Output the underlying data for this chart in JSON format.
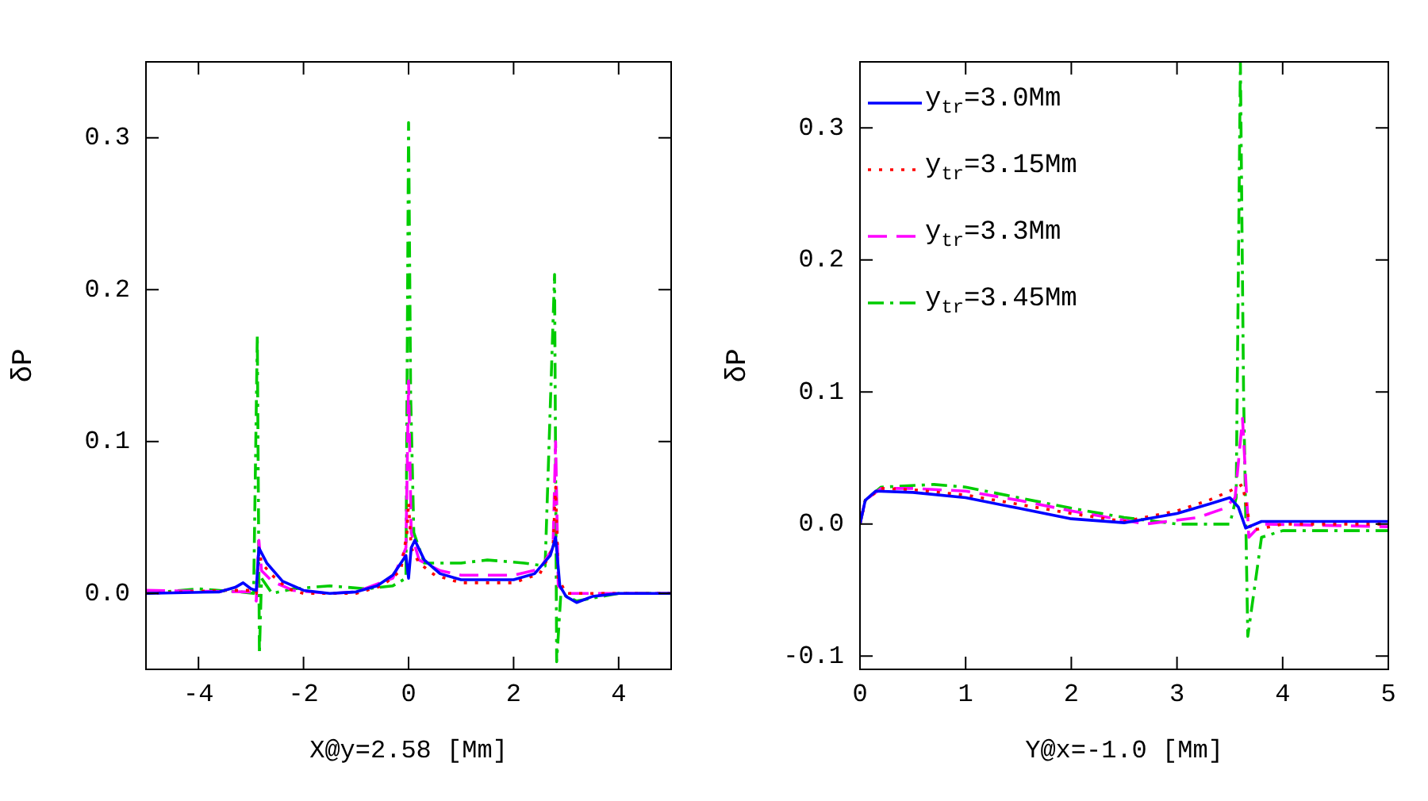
{
  "chart_data": [
    {
      "type": "line",
      "xlabel": "X@y=2.58 [Mm]",
      "ylabel": "δP",
      "xlim": [
        -5,
        5
      ],
      "xticks": [
        -4,
        -2,
        0,
        2,
        4
      ],
      "ylim": [
        -0.05,
        0.35
      ],
      "yticks": [
        {
          "value": 0,
          "label": "0.0"
        },
        {
          "value": 0.1,
          "label": "0.1"
        },
        {
          "value": 0.2,
          "label": "0.2"
        },
        {
          "value": 0.3,
          "label": "0.3"
        }
      ],
      "grid": false,
      "legend": false,
      "marker": "none",
      "series": [
        {
          "color": "#0000ff",
          "line_style": "solid",
          "x": [
            -5,
            -3.6,
            -3.3,
            -3.15,
            -3.0,
            -2.9,
            -2.85,
            -2.7,
            -2.4,
            -2,
            -1.5,
            -1,
            -0.6,
            -0.3,
            -0.05,
            0,
            0.05,
            0.12,
            0.3,
            0.6,
            1,
            2,
            2.4,
            2.7,
            2.8,
            2.88,
            3.0,
            3.2,
            3.5,
            4,
            5
          ],
          "values": [
            0,
            0.001,
            0.004,
            0.007,
            0.003,
            0.002,
            0.03,
            0.02,
            0.008,
            0.002,
            0,
            0.001,
            0.005,
            0.012,
            0.025,
            0.01,
            0.03,
            0.035,
            0.022,
            0.013,
            0.009,
            0.009,
            0.013,
            0.025,
            0.037,
            0.005,
            -0.002,
            -0.006,
            -0.002,
            0,
            0
          ]
        },
        {
          "color": "#ff0000",
          "line_style": "dotted",
          "x": [
            -5,
            -3.5,
            -3.0,
            -2.9,
            -2.85,
            -2.8,
            -2.6,
            -2.3,
            -2,
            -1,
            -0.5,
            -0.15,
            -0.03,
            0,
            0.05,
            0.2,
            0.5,
            1,
            2,
            2.5,
            2.75,
            2.8,
            2.85,
            3.0,
            3.5,
            5
          ],
          "values": [
            0,
            0.002,
            0.002,
            0,
            0.03,
            0.02,
            0.012,
            0.003,
            0,
            0,
            0.005,
            0.015,
            0.04,
            0.06,
            0.03,
            0.02,
            0.012,
            0.007,
            0.007,
            0.013,
            0.03,
            0.07,
            0.01,
            0,
            0,
            0
          ]
        },
        {
          "color": "#ff00ff",
          "line_style": "dashed",
          "x": [
            -5,
            -3.0,
            -2.9,
            -2.85,
            -2.8,
            -2.6,
            -2.2,
            -1.5,
            -1,
            -0.3,
            -0.05,
            0,
            0.05,
            0.2,
            0.6,
            1,
            2,
            2.5,
            2.75,
            2.8,
            2.85,
            3,
            5
          ],
          "values": [
            0.002,
            0.001,
            -0.005,
            0.035,
            0.015,
            0.008,
            0.002,
            0,
            0.001,
            0.01,
            0.03,
            0.14,
            0.04,
            0.022,
            0.015,
            0.012,
            0.012,
            0.016,
            0.03,
            0.1,
            0.005,
            0,
            0
          ]
        },
        {
          "color": "#00cc00",
          "line_style": "dashdot",
          "x": [
            -5,
            -4,
            -3.2,
            -2.95,
            -2.88,
            -2.84,
            -2.8,
            -2.6,
            -2.2,
            -1.5,
            -0.8,
            -0.3,
            -0.05,
            0,
            0.04,
            0.1,
            0.3,
            1,
            1.5,
            2.2,
            2.6,
            2.78,
            2.82,
            2.9,
            3.2,
            4,
            5
          ],
          "values": [
            0,
            0.003,
            0.001,
            0,
            0.17,
            -0.04,
            0.01,
            0,
            0.003,
            0.005,
            0.003,
            0.005,
            0.01,
            0.31,
            0.13,
            0.04,
            0.02,
            0.02,
            0.022,
            0.02,
            0.018,
            0.21,
            -0.045,
            0,
            -0.005,
            0,
            0
          ]
        }
      ]
    },
    {
      "type": "line",
      "xlabel": "Y@x=-1.0 [Mm]",
      "ylabel": "δP",
      "xlim": [
        0,
        5
      ],
      "xticks": [
        0,
        1,
        2,
        3,
        4,
        5
      ],
      "ylim": [
        -0.11,
        0.35
      ],
      "yticks": [
        {
          "value": -0.1,
          "label": "-0.1"
        },
        {
          "value": 0,
          "label": "0.0"
        },
        {
          "value": 0.1,
          "label": "0.1"
        },
        {
          "value": 0.2,
          "label": "0.2"
        },
        {
          "value": 0.3,
          "label": "0.3"
        }
      ],
      "grid": false,
      "legend": "top left",
      "marker": "none",
      "series": [
        {
          "name": "y$_{tr}$=3.0Mm",
          "color": "#0000ff",
          "line_style": "solid",
          "x": [
            0,
            0.05,
            0.15,
            0.5,
            1,
            1.5,
            2,
            2.5,
            3,
            3.3,
            3.5,
            3.58,
            3.65,
            3.8,
            5
          ],
          "values": [
            0,
            0.018,
            0.025,
            0.024,
            0.02,
            0.012,
            0.004,
            0.001,
            0.008,
            0.015,
            0.02,
            0.013,
            -0.003,
            0.002,
            0.002
          ]
        },
        {
          "name": "y$_{tr}$=3.15Mm",
          "color": "#ff0000",
          "line_style": "dotted",
          "x": [
            0,
            0.05,
            0.2,
            0.5,
            1,
            1.5,
            2,
            2.5,
            3,
            3.3,
            3.5,
            3.62,
            3.7,
            4,
            5
          ],
          "values": [
            0,
            0.018,
            0.027,
            0.026,
            0.022,
            0.015,
            0.008,
            0.002,
            0.01,
            0.018,
            0.025,
            0.03,
            -0.005,
            0,
            0
          ]
        },
        {
          "name": "y$_{tr}$=3.3Mm",
          "color": "#ff00ff",
          "line_style": "dashed",
          "x": [
            0,
            0.05,
            0.2,
            0.5,
            1,
            1.5,
            2,
            2.7,
            3.2,
            3.45,
            3.55,
            3.62,
            3.68,
            3.8,
            5
          ],
          "values": [
            0,
            0.018,
            0.027,
            0.027,
            0.025,
            0.018,
            0.01,
            0,
            0.005,
            0.012,
            0.02,
            0.08,
            -0.01,
            0,
            -0.002
          ]
        },
        {
          "name": "y$_{tr}$=3.45Mm",
          "color": "#00cc00",
          "line_style": "dashdot",
          "x": [
            0,
            0.05,
            0.2,
            0.7,
            1,
            1.5,
            2,
            2.5,
            3,
            3.5,
            3.56,
            3.6,
            3.63,
            3.67,
            3.8,
            4,
            5
          ],
          "values": [
            0,
            0.018,
            0.028,
            0.03,
            0.028,
            0.02,
            0.012,
            0.005,
            0,
            0,
            0.02,
            0.35,
            0.1,
            -0.085,
            -0.01,
            -0.005,
            -0.005
          ]
        }
      ]
    }
  ]
}
